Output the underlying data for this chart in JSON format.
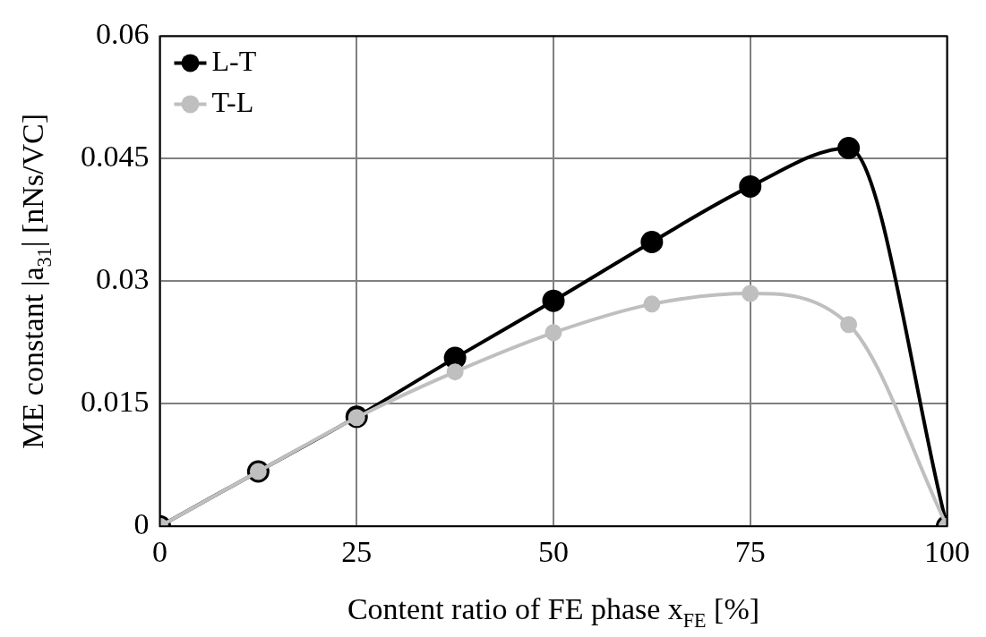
{
  "chart_data": {
    "type": "line",
    "xlabel": "Content ratio of FE phase x$_{FE}$ [%]",
    "ylabel": "ME constant |a$_{31}$| [nNs/VC]",
    "x": [
      0,
      12.5,
      25,
      37.5,
      50,
      62.5,
      75,
      87.5,
      100
    ],
    "series": [
      {
        "name": "L-T",
        "color": "#000000",
        "values": [
          0,
          0.0067,
          0.0134,
          0.0206,
          0.0276,
          0.0348,
          0.0416,
          0.0463,
          0
        ]
      },
      {
        "name": "T-L",
        "color": "#bfbfbf",
        "values": [
          0,
          0.0067,
          0.0133,
          0.0189,
          0.0237,
          0.0272,
          0.0285,
          0.0247,
          0
        ]
      }
    ],
    "xlim": [
      0,
      100
    ],
    "xticks": [
      0,
      25,
      50,
      75,
      100
    ],
    "ylim": [
      0,
      0.06
    ],
    "yticks": [
      0,
      0.015,
      0.03,
      0.045,
      0.06
    ],
    "grid": true,
    "legend": "top left",
    "marker": "circle",
    "line_style": "solid"
  }
}
